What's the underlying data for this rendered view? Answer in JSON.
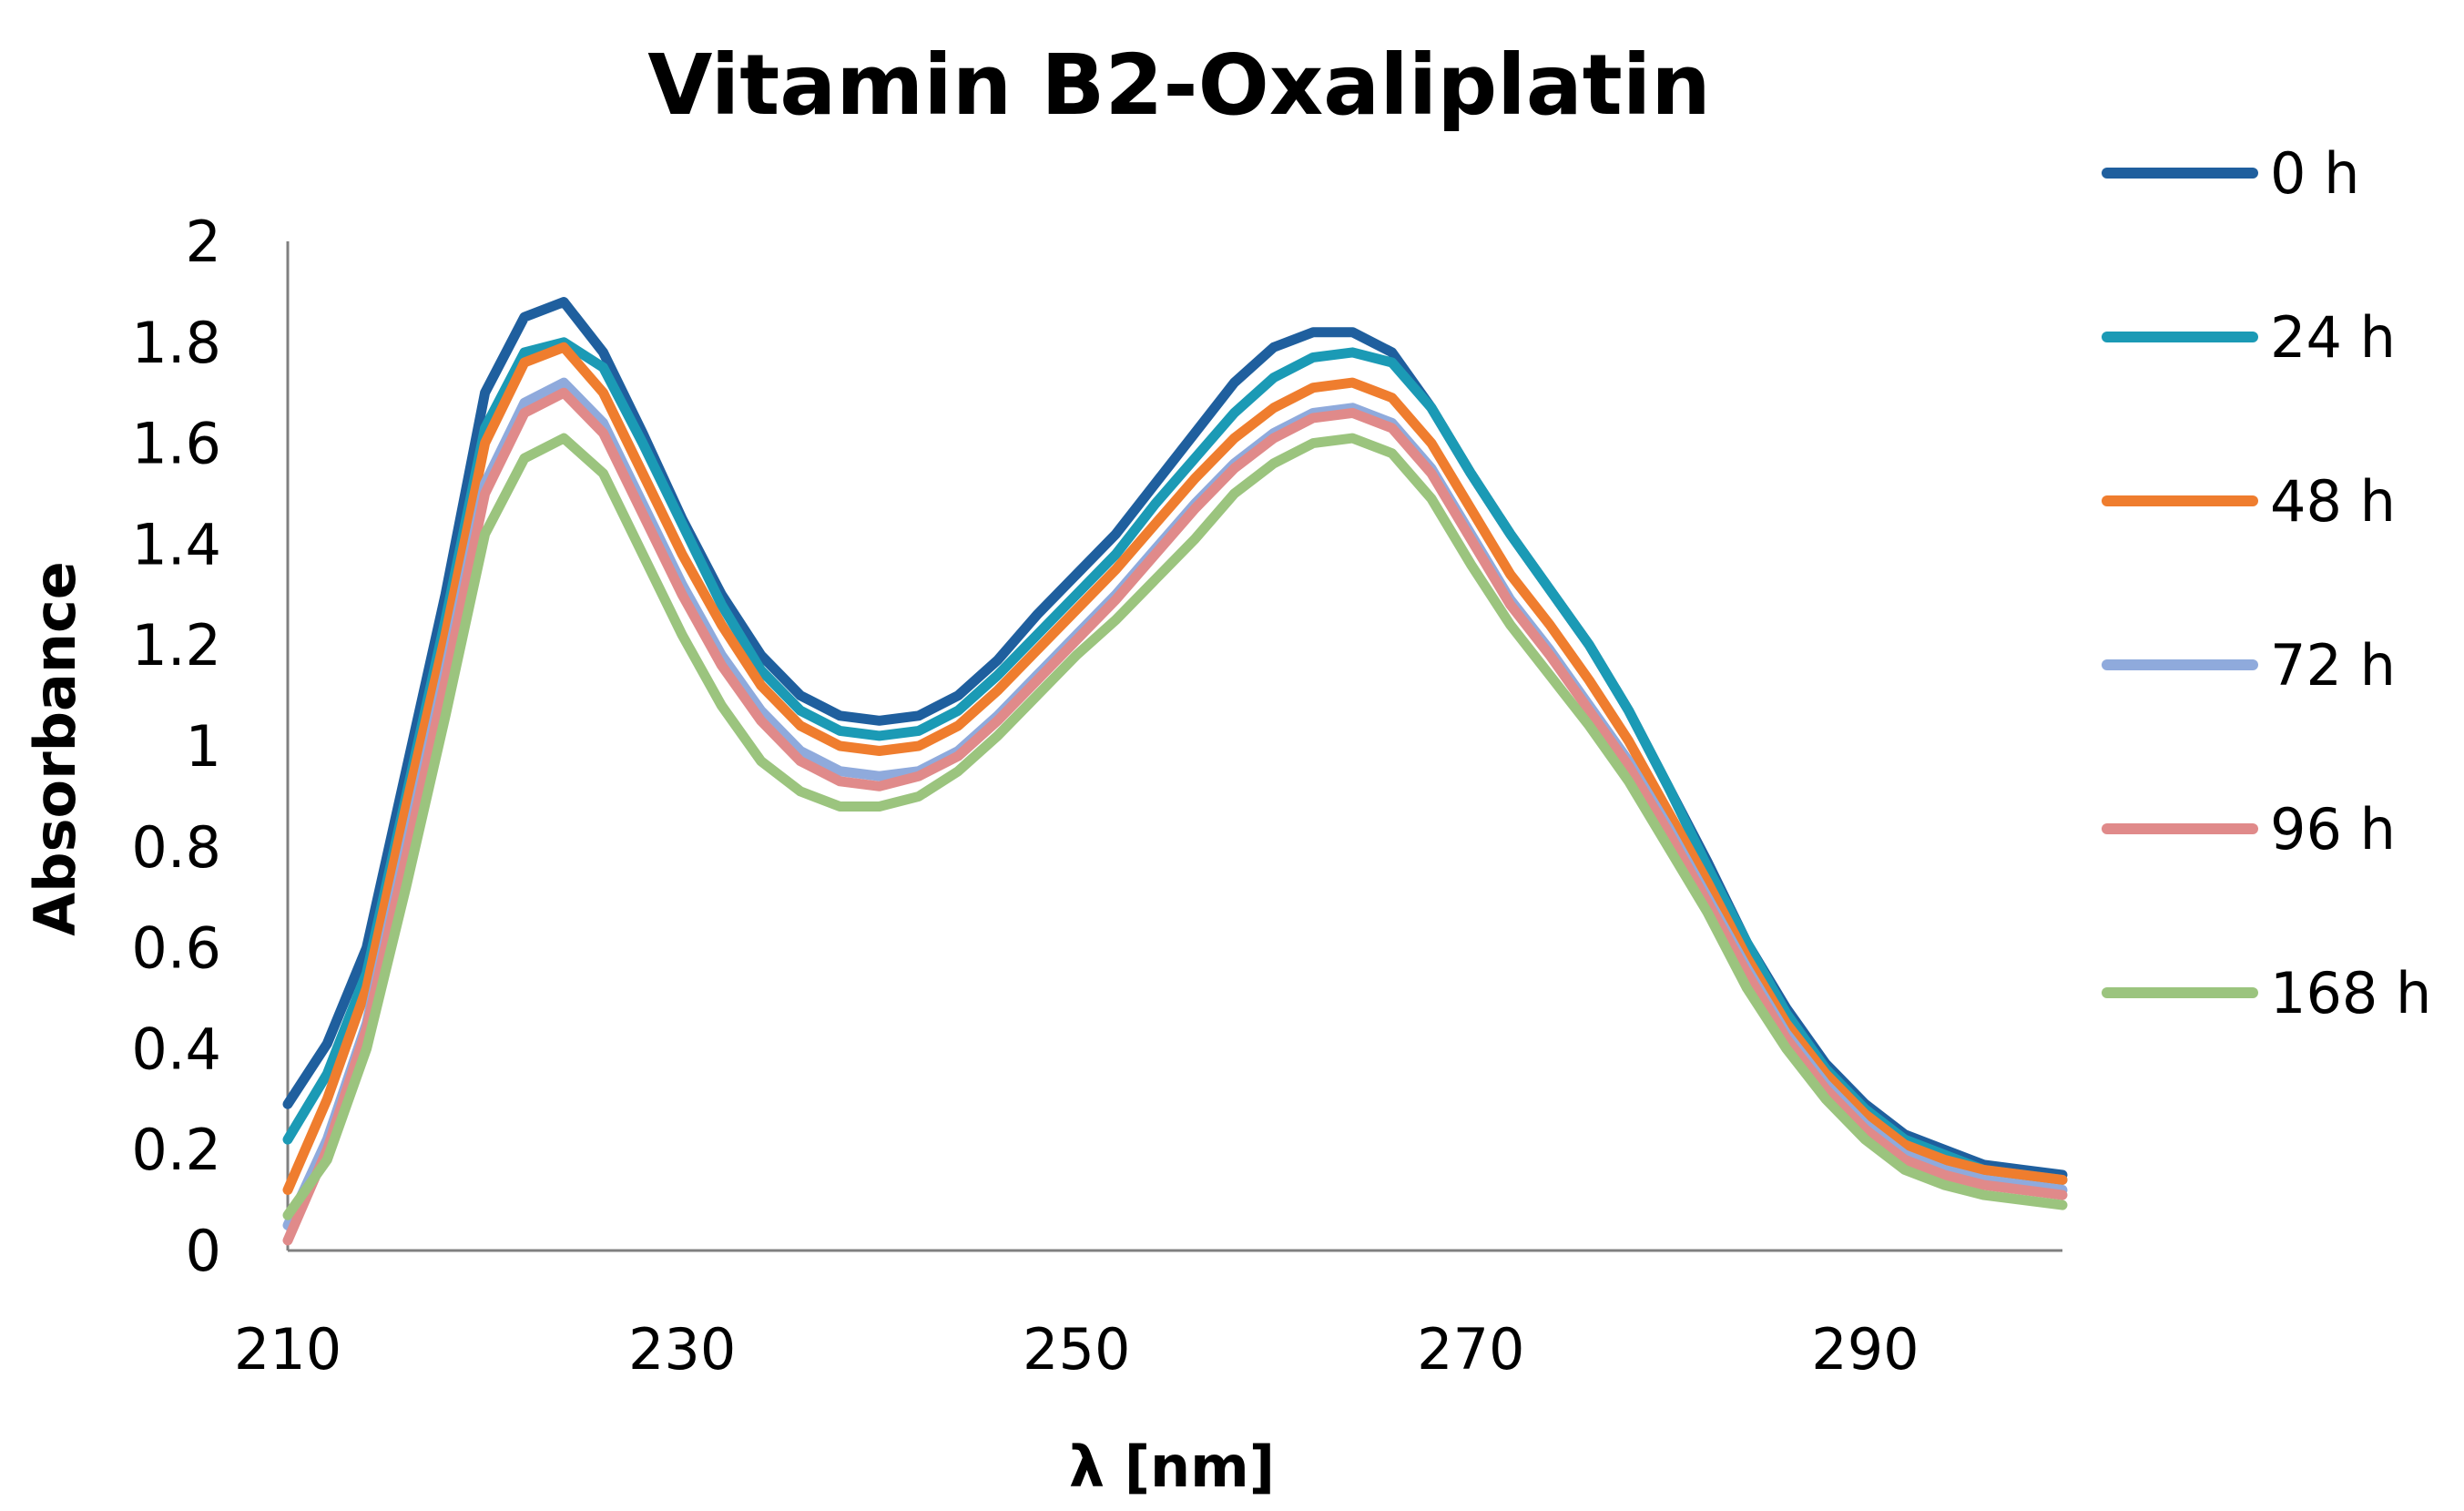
{
  "chart_data": {
    "type": "line",
    "title": "Vitamin B2-Oxaliplatin",
    "xlabel": "λ [nm]",
    "ylabel": "Absorbance",
    "xlim": [
      210,
      300
    ],
    "ylim": [
      0,
      2
    ],
    "x_ticks": [
      210,
      230,
      250,
      270,
      290
    ],
    "y_ticks": [
      0,
      0.2,
      0.4,
      0.6,
      0.8,
      1,
      1.2,
      1.4,
      1.6,
      1.8,
      2
    ],
    "y_tick_labels": [
      "0",
      "0.2",
      "0.4",
      "0.6",
      "0.8",
      "1",
      "1.2",
      "1.4",
      "1.6",
      "1.8",
      "2"
    ],
    "grid": false,
    "legend_position": "right",
    "x": [
      210,
      212,
      214,
      216,
      218,
      220,
      222,
      224,
      226,
      228,
      230,
      232,
      234,
      236,
      238,
      240,
      242,
      244,
      246,
      248,
      250,
      252,
      254,
      256,
      258,
      260,
      262,
      264,
      266,
      268,
      270,
      272,
      274,
      276,
      278,
      280,
      282,
      284,
      286,
      288,
      290,
      292,
      294,
      296,
      298,
      300
    ],
    "series": [
      {
        "name": "0 h",
        "color": "#1F5F9E",
        "values": [
          0.29,
          0.41,
          0.6,
          0.95,
          1.3,
          1.7,
          1.85,
          1.88,
          1.78,
          1.62,
          1.45,
          1.3,
          1.18,
          1.1,
          1.06,
          1.05,
          1.06,
          1.1,
          1.17,
          1.26,
          1.34,
          1.42,
          1.52,
          1.62,
          1.72,
          1.79,
          1.82,
          1.82,
          1.78,
          1.67,
          1.54,
          1.42,
          1.31,
          1.2,
          1.07,
          0.92,
          0.77,
          0.61,
          0.48,
          0.37,
          0.29,
          0.23,
          0.2,
          0.17,
          0.16,
          0.15
        ]
      },
      {
        "name": "24 h",
        "color": "#1B9AB5",
        "values": [
          0.22,
          0.35,
          0.55,
          0.9,
          1.25,
          1.63,
          1.78,
          1.8,
          1.75,
          1.6,
          1.44,
          1.28,
          1.15,
          1.07,
          1.03,
          1.02,
          1.03,
          1.07,
          1.14,
          1.22,
          1.3,
          1.38,
          1.48,
          1.57,
          1.66,
          1.73,
          1.77,
          1.78,
          1.76,
          1.67,
          1.54,
          1.42,
          1.31,
          1.2,
          1.07,
          0.92,
          0.76,
          0.61,
          0.47,
          0.36,
          0.28,
          0.22,
          0.19,
          0.16,
          0.15,
          0.14
        ]
      },
      {
        "name": "48 h",
        "color": "#EF7D2E",
        "values": [
          0.12,
          0.3,
          0.52,
          0.88,
          1.22,
          1.6,
          1.76,
          1.79,
          1.7,
          1.54,
          1.38,
          1.24,
          1.12,
          1.04,
          1.0,
          0.99,
          1.0,
          1.04,
          1.11,
          1.19,
          1.27,
          1.35,
          1.44,
          1.53,
          1.61,
          1.67,
          1.71,
          1.72,
          1.69,
          1.6,
          1.47,
          1.34,
          1.24,
          1.13,
          1.01,
          0.87,
          0.73,
          0.58,
          0.45,
          0.35,
          0.27,
          0.21,
          0.18,
          0.16,
          0.15,
          0.14
        ]
      },
      {
        "name": "72 h",
        "color": "#8FAADC",
        "values": [
          0.05,
          0.22,
          0.45,
          0.8,
          1.15,
          1.52,
          1.68,
          1.72,
          1.64,
          1.48,
          1.32,
          1.18,
          1.07,
          0.99,
          0.95,
          0.94,
          0.95,
          0.99,
          1.06,
          1.14,
          1.22,
          1.3,
          1.39,
          1.48,
          1.56,
          1.62,
          1.66,
          1.67,
          1.64,
          1.55,
          1.42,
          1.29,
          1.19,
          1.08,
          0.97,
          0.84,
          0.7,
          0.56,
          0.43,
          0.33,
          0.25,
          0.19,
          0.16,
          0.14,
          0.13,
          0.12
        ]
      },
      {
        "name": "96 h",
        "color": "#E08A8A",
        "values": [
          0.02,
          0.2,
          0.44,
          0.78,
          1.13,
          1.5,
          1.66,
          1.7,
          1.62,
          1.46,
          1.3,
          1.16,
          1.05,
          0.97,
          0.93,
          0.92,
          0.94,
          0.98,
          1.05,
          1.13,
          1.21,
          1.29,
          1.38,
          1.47,
          1.55,
          1.61,
          1.65,
          1.66,
          1.63,
          1.54,
          1.41,
          1.28,
          1.18,
          1.07,
          0.96,
          0.83,
          0.69,
          0.55,
          0.42,
          0.32,
          0.24,
          0.18,
          0.15,
          0.13,
          0.12,
          0.11
        ]
      },
      {
        "name": "168 h",
        "color": "#9BC47E",
        "values": [
          0.07,
          0.18,
          0.4,
          0.72,
          1.06,
          1.42,
          1.57,
          1.61,
          1.54,
          1.38,
          1.22,
          1.08,
          0.97,
          0.91,
          0.88,
          0.88,
          0.9,
          0.95,
          1.02,
          1.1,
          1.18,
          1.25,
          1.33,
          1.41,
          1.5,
          1.56,
          1.6,
          1.61,
          1.58,
          1.49,
          1.36,
          1.24,
          1.14,
          1.04,
          0.93,
          0.8,
          0.67,
          0.52,
          0.4,
          0.3,
          0.22,
          0.16,
          0.13,
          0.11,
          0.1,
          0.09
        ]
      }
    ]
  }
}
